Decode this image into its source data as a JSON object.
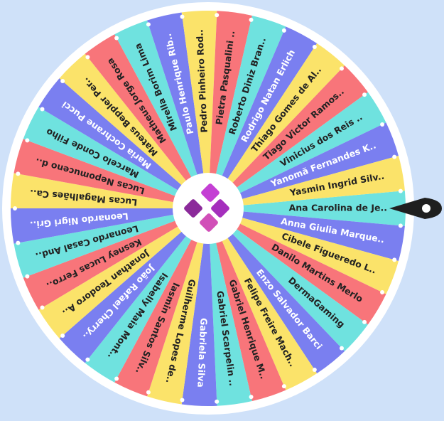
{
  "wheel": {
    "colors": {
      "background": "#cfe1f9",
      "rim": "#ffffff",
      "pointer": "#1f1f1f",
      "hub": "#ffffff",
      "logo": "#a52fbd"
    },
    "pointer_icon": "pointer-icon",
    "hub_icon": "logo-icon",
    "segments": [
      {
        "label": "Ana Carolina de Je..",
        "color": "#6fe2df"
      },
      {
        "label": "Anna Giulia Marque..",
        "color": "#7a7ff0"
      },
      {
        "label": "Cibele Figueredo L..",
        "color": "#fbe36a"
      },
      {
        "label": "Danilo Martins Merlo",
        "color": "#f8757a"
      },
      {
        "label": "DermaGaming",
        "color": "#6fe2df"
      },
      {
        "label": "Enzo Salvador Barci",
        "color": "#7a7ff0"
      },
      {
        "label": "Felipe Freire Mach..",
        "color": "#fbe36a"
      },
      {
        "label": "Gabriel Henrique M..",
        "color": "#f8757a"
      },
      {
        "label": "Gabriel Scarpelin ..",
        "color": "#6fe2df"
      },
      {
        "label": "Gabriela Silva",
        "color": "#7a7ff0"
      },
      {
        "label": "Guilherme Lopes de..",
        "color": "#fbe36a"
      },
      {
        "label": "Iasmin Santos Silv..",
        "color": "#f8757a"
      },
      {
        "label": "Isabelly Maia Mont..",
        "color": "#6fe2df"
      },
      {
        "label": "João Rafael Cherry..",
        "color": "#7a7ff0"
      },
      {
        "label": "Jonathan Teodoro A..",
        "color": "#fbe36a"
      },
      {
        "label": "Kesney Lucas Ferro..",
        "color": "#f8757a"
      },
      {
        "label": "Leonardo Casal And..",
        "color": "#6fe2df"
      },
      {
        "label": "Leonardo Nigri Gri..",
        "color": "#7a7ff0"
      },
      {
        "label": "Lucas Magalhães Ca..",
        "color": "#fbe36a"
      },
      {
        "label": "Lucas Nepomuceno d..",
        "color": "#f8757a"
      },
      {
        "label": "Marcelo Conde Filho",
        "color": "#6fe2df"
      },
      {
        "label": "Maria Cochrane Pucci",
        "color": "#7a7ff0"
      },
      {
        "label": "Mateus Beppler Per..",
        "color": "#fbe36a"
      },
      {
        "label": "Matheus Jorge Rosa",
        "color": "#f8757a"
      },
      {
        "label": "Mirella Borim Lima",
        "color": "#6fe2df"
      },
      {
        "label": "Paulo Henrique Rib..",
        "color": "#7a7ff0"
      },
      {
        "label": "Pedro Pinheiro Rod..",
        "color": "#fbe36a"
      },
      {
        "label": "Pietra Pasqualini ..",
        "color": "#f8757a"
      },
      {
        "label": "Roberto Diniz Bran..",
        "color": "#6fe2df"
      },
      {
        "label": "Rodrigo Natan Erlich",
        "color": "#7a7ff0"
      },
      {
        "label": "Thiago Gomes de Al..",
        "color": "#fbe36a"
      },
      {
        "label": "Tiago Victor Ramos..",
        "color": "#f8757a"
      },
      {
        "label": "Vinicius dos Reis ..",
        "color": "#6fe2df"
      },
      {
        "label": "Yanomã Fernandes K..",
        "color": "#7a7ff0"
      },
      {
        "label": "Yasmin Ingrid Silv..",
        "color": "#fbe36a"
      }
    ]
  }
}
